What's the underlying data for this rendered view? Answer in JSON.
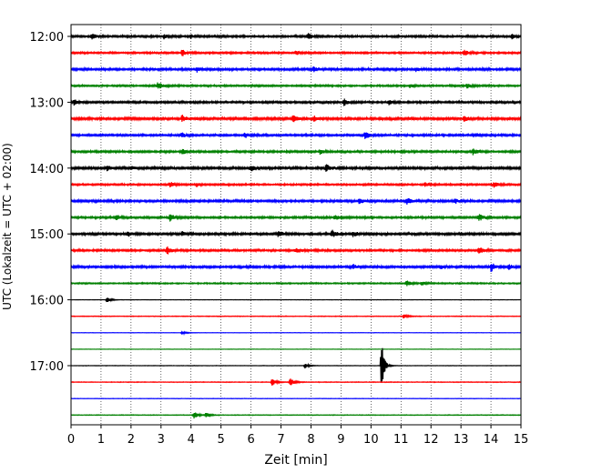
{
  "chart_data": {
    "type": "line",
    "title": "",
    "xlabel": "Zeit  [min]",
    "ylabel": "UTC (Lokalzeit = UTC + 02:00)",
    "xlim": [
      0,
      15
    ],
    "x_ticks": [
      0,
      1,
      2,
      3,
      4,
      5,
      6,
      7,
      8,
      9,
      10,
      11,
      12,
      13,
      14,
      15
    ],
    "y_ticks": [
      "12:00",
      "13:00",
      "14:00",
      "15:00",
      "16:00",
      "17:00"
    ],
    "grid": "vertical dotted",
    "line_colors": [
      "#000000",
      "#ff0000",
      "#0000ff",
      "#008000"
    ],
    "rows_per_hour": 4,
    "minutes_per_row": 15,
    "traces": [
      {
        "start": "12:00",
        "color": "#000000",
        "noise": 0.9,
        "events": [
          [
            0.7,
            3
          ],
          [
            3.1,
            2.5
          ],
          [
            4.0,
            2
          ],
          [
            7.9,
            3.5
          ],
          [
            14.7,
            3
          ]
        ]
      },
      {
        "start": "12:15",
        "color": "#ff0000",
        "noise": 0.8,
        "events": [
          [
            3.7,
            4
          ],
          [
            7.5,
            2
          ],
          [
            13.1,
            3.5
          ]
        ]
      },
      {
        "start": "12:30",
        "color": "#0000ff",
        "noise": 1.0,
        "events": [
          [
            4.2,
            2.5
          ],
          [
            8.1,
            3
          ],
          [
            11.5,
            2
          ]
        ]
      },
      {
        "start": "12:45",
        "color": "#008000",
        "noise": 0.8,
        "events": [
          [
            2.9,
            4
          ],
          [
            11.3,
            2
          ],
          [
            13.2,
            3
          ]
        ]
      },
      {
        "start": "13:00",
        "color": "#000000",
        "noise": 0.9,
        "events": [
          [
            0.1,
            3
          ],
          [
            9.1,
            4
          ],
          [
            10.6,
            2.5
          ]
        ]
      },
      {
        "start": "13:15",
        "color": "#ff0000",
        "noise": 1.1,
        "events": [
          [
            3.7,
            3.5
          ],
          [
            7.4,
            4.5
          ],
          [
            8.1,
            3
          ],
          [
            13.1,
            3
          ]
        ]
      },
      {
        "start": "13:30",
        "color": "#0000ff",
        "noise": 0.9,
        "events": [
          [
            3.7,
            2.5
          ],
          [
            5.8,
            3
          ],
          [
            9.8,
            4
          ],
          [
            13.5,
            2
          ]
        ]
      },
      {
        "start": "13:45",
        "color": "#008000",
        "noise": 0.9,
        "events": [
          [
            3.7,
            3
          ],
          [
            8.3,
            2.5
          ],
          [
            13.4,
            4
          ]
        ]
      },
      {
        "start": "14:00",
        "color": "#000000",
        "noise": 1.1,
        "events": [
          [
            1.2,
            3
          ],
          [
            2.0,
            2.5
          ],
          [
            6.0,
            3.5
          ],
          [
            8.5,
            4
          ]
        ]
      },
      {
        "start": "14:15",
        "color": "#ff0000",
        "noise": 0.8,
        "events": [
          [
            3.3,
            2.5
          ],
          [
            4.2,
            2
          ],
          [
            11.8,
            2.5
          ],
          [
            14.1,
            3
          ]
        ]
      },
      {
        "start": "14:30",
        "color": "#0000ff",
        "noise": 1.0,
        "events": [
          [
            9.6,
            3
          ],
          [
            11.2,
            4
          ],
          [
            12.8,
            2.5
          ]
        ]
      },
      {
        "start": "14:45",
        "color": "#008000",
        "noise": 0.9,
        "events": [
          [
            1.5,
            3
          ],
          [
            3.3,
            4
          ],
          [
            8.8,
            3
          ],
          [
            13.6,
            4
          ]
        ]
      },
      {
        "start": "15:00",
        "color": "#000000",
        "noise": 1.0,
        "events": [
          [
            1.9,
            2.5
          ],
          [
            3.7,
            2.5
          ],
          [
            6.9,
            3
          ],
          [
            8.7,
            4
          ],
          [
            9.4,
            3
          ]
        ]
      },
      {
        "start": "15:15",
        "color": "#ff0000",
        "noise": 0.9,
        "events": [
          [
            3.2,
            4.5
          ],
          [
            7.5,
            2.5
          ],
          [
            13.6,
            4
          ]
        ]
      },
      {
        "start": "15:30",
        "color": "#0000ff",
        "noise": 1.0,
        "events": [
          [
            9.4,
            2.5
          ],
          [
            12.3,
            2
          ],
          [
            14.0,
            5
          ],
          [
            14.6,
            3
          ]
        ]
      },
      {
        "start": "15:45",
        "color": "#008000",
        "noise": 0.6,
        "events": [
          [
            11.2,
            3
          ],
          [
            11.7,
            2
          ]
        ]
      },
      {
        "start": "16:00",
        "color": "#000000",
        "noise": 0.15,
        "events": [
          [
            1.2,
            3
          ]
        ]
      },
      {
        "start": "16:15",
        "color": "#ff0000",
        "noise": 0.3,
        "events": [
          [
            11.1,
            2.5
          ]
        ]
      },
      {
        "start": "16:30",
        "color": "#0000ff",
        "noise": 0.15,
        "events": [
          [
            3.7,
            2
          ]
        ]
      },
      {
        "start": "16:45",
        "color": "#008000",
        "noise": 0.15,
        "events": []
      },
      {
        "start": "17:00",
        "color": "#000000",
        "noise": 0.2,
        "events": [
          [
            7.8,
            3
          ],
          [
            10.35,
            30
          ]
        ]
      },
      {
        "start": "17:15",
        "color": "#ff0000",
        "noise": 0.3,
        "events": [
          [
            6.7,
            4
          ],
          [
            7.3,
            5
          ]
        ]
      },
      {
        "start": "17:30",
        "color": "#0000ff",
        "noise": 0.2,
        "events": []
      },
      {
        "start": "17:45",
        "color": "#008000",
        "noise": 0.3,
        "events": [
          [
            4.1,
            4
          ],
          [
            4.5,
            3
          ]
        ]
      }
    ]
  }
}
